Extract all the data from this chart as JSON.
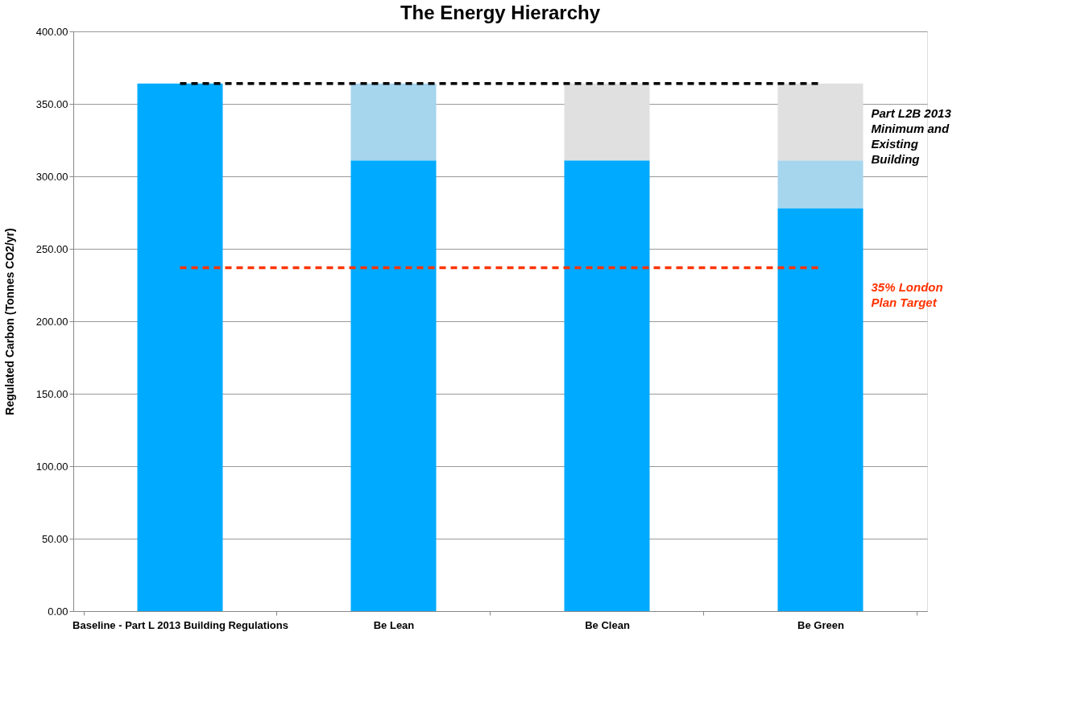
{
  "chart_data": {
    "type": "bar",
    "title": "The Energy Hierarchy",
    "ylabel": "Regulated Carbon (Tonnes CO2/yr)",
    "categories": [
      "Baseline - Part L 2013 Building Regulations",
      "Be Lean",
      "Be Clean",
      "Be Green"
    ],
    "stacked": true,
    "series": [
      {
        "color": "#00aaff",
        "values": [
          364,
          311,
          311,
          278
        ]
      },
      {
        "color": "#a6d5ee",
        "values": [
          null,
          53,
          null,
          33
        ]
      },
      {
        "color": "#e0e0e0",
        "values": [
          null,
          null,
          53,
          53
        ]
      }
    ],
    "ylim": [
      0,
      400
    ],
    "yticks": [
      {
        "value": 0,
        "label": "0.00"
      },
      {
        "value": 50,
        "label": "50.00"
      },
      {
        "value": 100,
        "label": "100.00"
      },
      {
        "value": 150,
        "label": "150.00"
      },
      {
        "value": 200,
        "label": "200.00"
      },
      {
        "value": 250,
        "label": "250.00"
      },
      {
        "value": 300,
        "label": "300.00"
      },
      {
        "value": 350,
        "label": "350.00"
      },
      {
        "value": 400,
        "label": "400.00"
      }
    ],
    "grid": "y",
    "legend": false,
    "ref_lines": [
      {
        "axis": "y",
        "value": 364,
        "label": "Part L2B 2013 Minimum and Existing Building",
        "color": "#000000",
        "line_style": "dashed"
      },
      {
        "axis": "y",
        "value": 237,
        "label": "35% London Plan Target",
        "color": "#ff3300",
        "line_style": "dashed"
      }
    ]
  }
}
